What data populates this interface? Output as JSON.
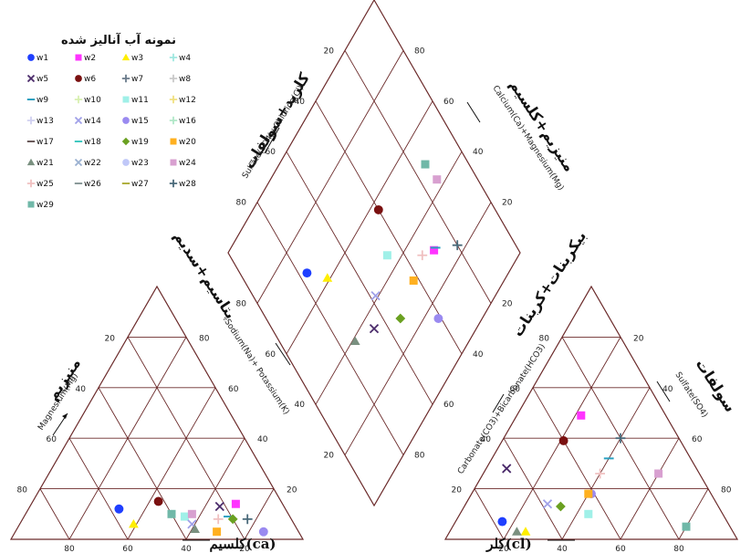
{
  "chart_data": {
    "type": "scatter",
    "subtype": "piper-diagram",
    "legend": {
      "title": "نمونه آب آنالیز شده",
      "placement": "top-left",
      "entries": [
        {
          "label": "w1",
          "symbol": "dot",
          "color": "#1f3fff"
        },
        {
          "label": "w2",
          "symbol": "square",
          "color": "#ff33ff"
        },
        {
          "label": "w3",
          "symbol": "triangle",
          "color": "#ffee00"
        },
        {
          "label": "w4",
          "symbol": "plus",
          "color": "#a0e8e0"
        },
        {
          "label": "w5",
          "symbol": "x",
          "color": "#4a2a6a"
        },
        {
          "label": "w6",
          "symbol": "dot",
          "color": "#7a1010"
        },
        {
          "label": "w7",
          "symbol": "plus",
          "color": "#6a7a8a"
        },
        {
          "label": "w8",
          "symbol": "plus",
          "color": "#c9c9c9"
        },
        {
          "label": "w9",
          "symbol": "dash",
          "color": "#2aa0c0"
        },
        {
          "label": "w10",
          "symbol": "plus",
          "color": "#d8f0b0"
        },
        {
          "label": "w11",
          "symbol": "square",
          "color": "#a0f0e8"
        },
        {
          "label": "w12",
          "symbol": "plus",
          "color": "#f0e080"
        },
        {
          "label": "w13",
          "symbol": "plus",
          "color": "#d0d0f0"
        },
        {
          "label": "w14",
          "symbol": "x",
          "color": "#a0a0e8"
        },
        {
          "label": "w15",
          "symbol": "dot",
          "color": "#9a8af0"
        },
        {
          "label": "w16",
          "symbol": "plus",
          "color": "#b0e8c8"
        },
        {
          "label": "w17",
          "symbol": "dash",
          "color": "#6a5a5a"
        },
        {
          "label": "w18",
          "symbol": "dash",
          "color": "#40c8c0"
        },
        {
          "label": "w19",
          "symbol": "diamond",
          "color": "#6aa020"
        },
        {
          "label": "w20",
          "symbol": "square",
          "color": "#ffb020"
        },
        {
          "label": "w21",
          "symbol": "triangle",
          "color": "#7a9080"
        },
        {
          "label": "w22",
          "symbol": "x",
          "color": "#9ab0d0"
        },
        {
          "label": "w23",
          "symbol": "dot",
          "color": "#c0c8f8"
        },
        {
          "label": "w24",
          "symbol": "square",
          "color": "#d8a0d0"
        },
        {
          "label": "w25",
          "symbol": "plus",
          "color": "#f0c0c0"
        },
        {
          "label": "w26",
          "symbol": "dash",
          "color": "#8a9a9a"
        },
        {
          "label": "w27",
          "symbol": "dash",
          "color": "#b0b040"
        },
        {
          "label": "w28",
          "symbol": "plus",
          "color": "#4a6a7a"
        },
        {
          "label": "w29",
          "symbol": "square",
          "color": "#70b8a8"
        }
      ]
    },
    "left_triangle": {
      "axis_top_fa": "منیزیم",
      "axis_top_en": "Magnesium(Mg)",
      "axis_right_fa": "پتاسیم+سدیم",
      "axis_right_en": "Sodium(Na)+ Potassium(K)",
      "axis_bottom_label": "کلسیم(ca)",
      "ticks_left": [
        "80",
        "60",
        "40",
        "20"
      ],
      "ticks_right": [
        "20",
        "40",
        "60",
        "80"
      ],
      "ticks_bottom": [
        "80",
        "60",
        "40",
        "20"
      ]
    },
    "right_triangle": {
      "axis_top_fa": "سولفات",
      "axis_top_en": "Sulfate(SO4)",
      "axis_left_fa": "بیکربنات+کربنات",
      "axis_left_en": "Carbonate(CO3)+Bicarbonate(HCO3)",
      "axis_bottom_label": "کلر(cl)",
      "ticks_left": [
        "20",
        "40",
        "60",
        "80"
      ],
      "ticks_right": [
        "80",
        "60",
        "40",
        "20"
      ],
      "ticks_bottom": [
        "20",
        "40",
        "60",
        "80"
      ]
    },
    "diamond": {
      "axis_upper_left_fa": "کلرید+سولفات",
      "axis_upper_left_en": "Sulfate(SO4)+Chloride(Cl)",
      "axis_upper_right_fa": "منیزیم+کلسیم",
      "axis_upper_right_en": "Calcium(Ca)+Magnesium(Mg)",
      "ticks_upper_left": [
        "80",
        "60",
        "40",
        "20"
      ],
      "ticks_upper_right": [
        "80",
        "60",
        "40",
        "20"
      ],
      "ticks_lower_left": [
        "20",
        "40",
        "60",
        "80"
      ],
      "ticks_lower_right": [
        "20",
        "40",
        "60",
        "80"
      ]
    },
    "samples": [
      {
        "name": "w1",
        "cation": {
          "Ca": 57,
          "Mg": 12
        },
        "anion": {
          "Cl": 16,
          "SO4": 7
        },
        "diamond": {
          "SO4_Cl": 23,
          "Ca_Mg": 69
        }
      },
      {
        "name": "w2",
        "cation": {
          "Ca": 16,
          "Mg": 14
        },
        "anion": {
          "Cl": 22,
          "SO4": 49
        },
        "diamond": {
          "SO4_Cl": 71,
          "Ca_Mg": 30
        }
      },
      {
        "name": "w3",
        "cation": {
          "Ca": 55,
          "Mg": 6
        },
        "anion": {
          "Cl": 26,
          "SO4": 3
        },
        "diamond": {
          "SO4_Cl": 29,
          "Ca_Mg": 61
        }
      },
      {
        "name": "w5",
        "cation": {
          "Ca": 22,
          "Mg": 13
        },
        "anion": {
          "Cl": 7,
          "SO4": 28
        },
        "diamond": {
          "SO4_Cl": 35,
          "Ca_Mg": 35
        }
      },
      {
        "name": "w6",
        "cation": {
          "Ca": 42,
          "Mg": 15
        },
        "anion": {
          "Cl": 21,
          "SO4": 39
        },
        "diamond": {
          "SO4_Cl": 60,
          "Ca_Mg": 57
        }
      },
      {
        "name": "w9",
        "cation": {
          "Ca": 21,
          "Mg": 9
        },
        "anion": {
          "Cl": 40,
          "SO4": 32
        },
        "diamond": {
          "SO4_Cl": 72,
          "Ca_Mg": 30
        }
      },
      {
        "name": "w11",
        "cation": {
          "Ca": 36,
          "Mg": 9
        },
        "anion": {
          "Cl": 44,
          "SO4": 10
        },
        "diamond": {
          "SO4_Cl": 54,
          "Ca_Mg": 45
        }
      },
      {
        "name": "w14",
        "cation": {
          "Ca": 35,
          "Mg": 6
        },
        "anion": {
          "Cl": 28,
          "SO4": 14
        },
        "diamond": {
          "SO4_Cl": 42,
          "Ca_Mg": 41
        }
      },
      {
        "name": "w15",
        "cation": {
          "Ca": 12,
          "Mg": 3
        },
        "anion": {
          "Cl": 41,
          "SO4": 18
        },
        "diamond": {
          "SO4_Cl": 59,
          "Ca_Mg": 15
        }
      },
      {
        "name": "w19",
        "cation": {
          "Ca": 20,
          "Mg": 8
        },
        "anion": {
          "Cl": 33,
          "SO4": 13
        },
        "diamond": {
          "SO4_Cl": 46,
          "Ca_Mg": 28
        }
      },
      {
        "name": "w20",
        "cation": {
          "Ca": 28,
          "Mg": 3
        },
        "anion": {
          "Cl": 40,
          "SO4": 18
        },
        "diamond": {
          "SO4_Cl": 58,
          "Ca_Mg": 31
        }
      },
      {
        "name": "w21",
        "cation": {
          "Ca": 35,
          "Mg": 4
        },
        "anion": {
          "Cl": 23,
          "SO4": 3
        },
        "diamond": {
          "SO4_Cl": 26,
          "Ca_Mg": 39
        }
      },
      {
        "name": "w24",
        "cation": {
          "Ca": 33,
          "Mg": 10
        },
        "anion": {
          "Cl": 60,
          "SO4": 26
        },
        "diamond": {
          "SO4_Cl": 86,
          "Ca_Mg": 43
        }
      },
      {
        "name": "w25",
        "cation": {
          "Ca": 25,
          "Mg": 8
        },
        "anion": {
          "Cl": 40,
          "SO4": 26
        },
        "diamond": {
          "SO4_Cl": 66,
          "Ca_Mg": 33
        }
      },
      {
        "name": "w28",
        "cation": {
          "Ca": 15,
          "Mg": 8
        },
        "anion": {
          "Cl": 40,
          "SO4": 40
        },
        "diamond": {
          "SO4_Cl": 80,
          "Ca_Mg": 23
        }
      },
      {
        "name": "w29",
        "cation": {
          "Ca": 40,
          "Mg": 10
        },
        "anion": {
          "Cl": 80,
          "SO4": 5
        },
        "diamond": {
          "SO4_Cl": 85,
          "Ca_Mg": 50
        }
      }
    ]
  }
}
